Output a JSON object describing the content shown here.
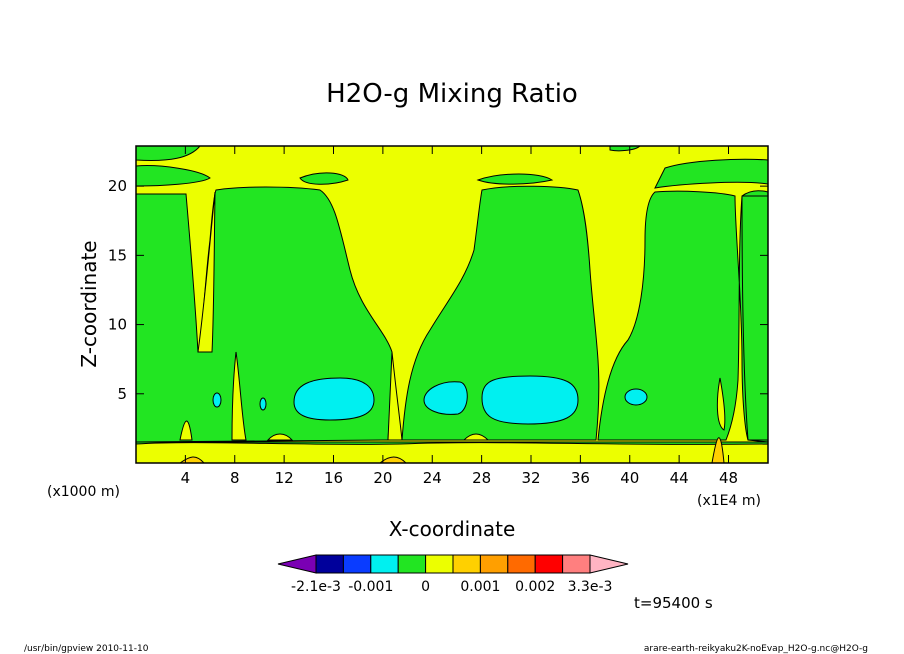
{
  "chart_data": {
    "type": "contour",
    "title": "H2O-g Mixing Ratio",
    "xlabel": "X-coordinate",
    "ylabel": "Z-coordinate",
    "x_unit_left": "(x1000 m)",
    "x_unit_right": "(x1E4 m)",
    "x_ticks": [
      "4",
      "8",
      "12",
      "16",
      "20",
      "24",
      "28",
      "32",
      "36",
      "40",
      "44",
      "48"
    ],
    "y_ticks": [
      "5",
      "10",
      "15",
      "20"
    ],
    "xlim": [
      0,
      51.2
    ],
    "ylim": [
      0,
      22.9
    ],
    "colorbar": {
      "colors": [
        "#7a00b4",
        "#00009b",
        "#0a3cff",
        "#00f0f0",
        "#22e522",
        "#ecff00",
        "#ffd000",
        "#ff9f00",
        "#ff6a00",
        "#ff0000",
        "#ff7f7f",
        "#ffb4c3"
      ],
      "labels": [
        "-2.1e-3",
        "-0.001",
        "0",
        "0.001",
        "0.002",
        "3.3e-3"
      ]
    },
    "time_label": "t=95400 s"
  },
  "footer": {
    "left": "/usr/bin/gpview  2010-11-10",
    "right": "arare-earth-reikyaku2K-noEvap_H2O-g.nc@H2O-g"
  }
}
